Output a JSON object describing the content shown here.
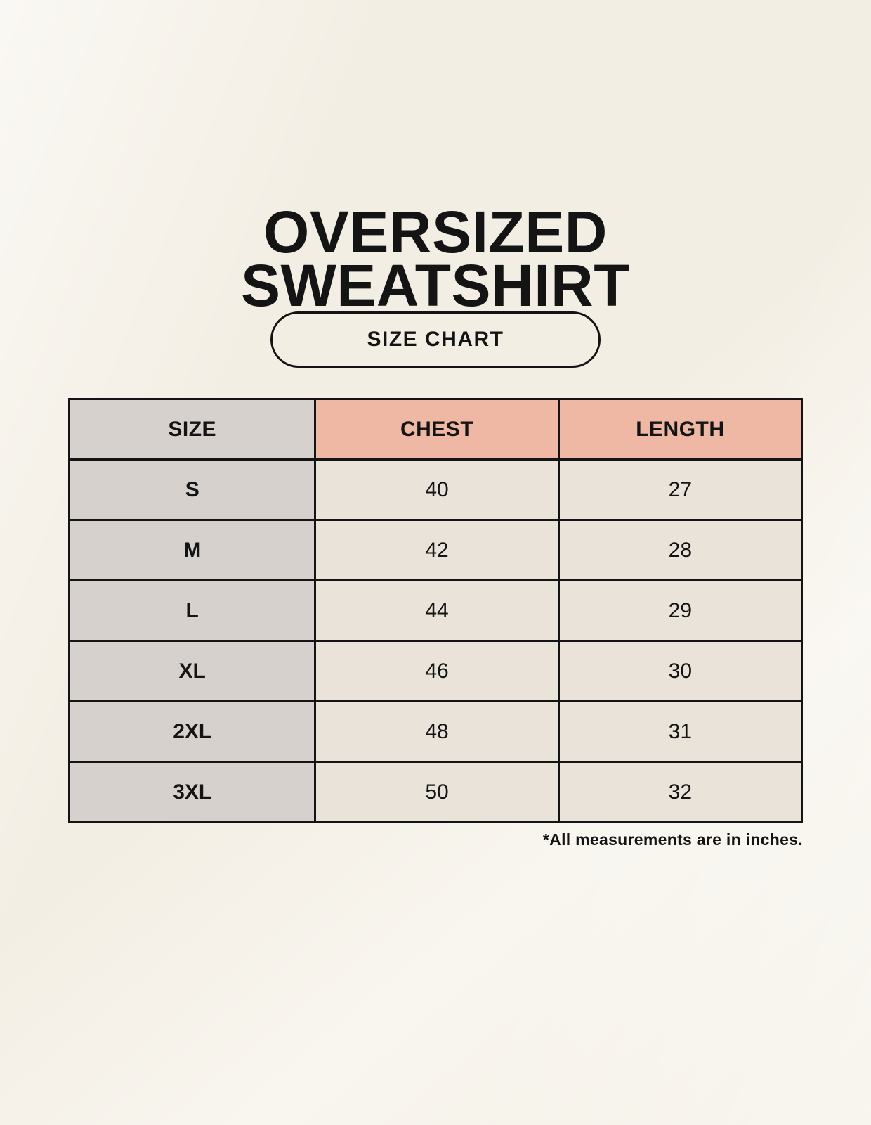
{
  "header": {
    "title_line1": "OVERSIZED",
    "title_line2": "SWEATSHIRT",
    "badge_label": "SIZE CHART"
  },
  "chart_data": {
    "type": "table",
    "title": "OVERSIZED SWEATSHIRT",
    "subtitle": "SIZE CHART",
    "columns": [
      "SIZE",
      "CHEST",
      "LENGTH"
    ],
    "rows": [
      {
        "size": "S",
        "chest": 40,
        "length": 27
      },
      {
        "size": "M",
        "chest": 42,
        "length": 28
      },
      {
        "size": "L",
        "chest": 44,
        "length": 29
      },
      {
        "size": "XL",
        "chest": 46,
        "length": 30
      },
      {
        "size": "2XL",
        "chest": 48,
        "length": 31
      },
      {
        "size": "3XL",
        "chest": 50,
        "length": 32
      }
    ],
    "units": "inches",
    "note": "*All measurements are in inches."
  },
  "colors": {
    "background": "#f6f2e9",
    "measurement_header_pink": "#efb8a4",
    "size_column_gray": "#d7d1cd",
    "value_cell_cream": "#e9e3d9",
    "table_border": "#141414",
    "text": "#141414"
  }
}
